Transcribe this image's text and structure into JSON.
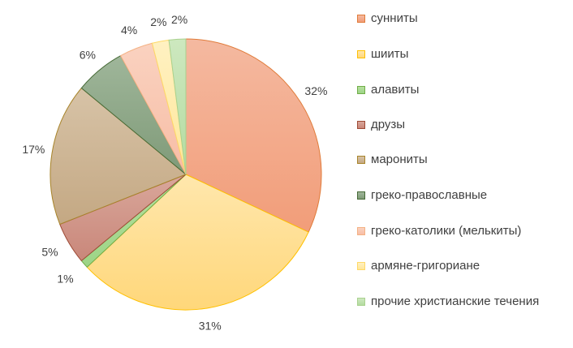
{
  "chart_data": {
    "type": "pie",
    "title": "",
    "start_angle_deg": 0,
    "direction": "clockwise",
    "legend_position": "right",
    "slices": [
      {
        "label": "сунниты",
        "value": 32,
        "display": "32%",
        "fill_light": "#f4b9a0",
        "fill_dark": "#f29d79",
        "stroke": "#e07b39"
      },
      {
        "label": "шииты",
        "value": 31,
        "display": "31%",
        "fill_light": "#ffe7ad",
        "fill_dark": "#ffd77a",
        "stroke": "#ffc000"
      },
      {
        "label": "алавиты",
        "value": 1,
        "display": "1%",
        "fill_light": "#b7e0a0",
        "fill_dark": "#9cd486",
        "stroke": "#70ad47"
      },
      {
        "label": "друзы",
        "value": 5,
        "display": "5%",
        "fill_light": "#d9a79b",
        "fill_dark": "#c9877a",
        "stroke": "#9e4a35"
      },
      {
        "label": "марониты",
        "value": 17,
        "display": "17%",
        "fill_light": "#d7c3a7",
        "fill_dark": "#c4a883",
        "stroke": "#a8842a"
      },
      {
        "label": "греко-православные",
        "value": 6,
        "display": "6%",
        "fill_light": "#9fb69a",
        "fill_dark": "#7f9a78",
        "stroke": "#466a36"
      },
      {
        "label": "греко-католики (мелькиты)",
        "value": 4,
        "display": "4%",
        "fill_light": "#fad2c0",
        "fill_dark": "#f7bda5",
        "stroke": "#f4b183"
      },
      {
        "label": "армяне-григориане",
        "value": 2,
        "display": "2%",
        "fill_light": "#fff1c2",
        "fill_dark": "#ffe699",
        "stroke": "#ffd966"
      },
      {
        "label": "прочие христианские течения",
        "value": 2,
        "display": "2%",
        "fill_light": "#cde8bf",
        "fill_dark": "#b3dba0",
        "stroke": "#a9d18e"
      }
    ]
  }
}
